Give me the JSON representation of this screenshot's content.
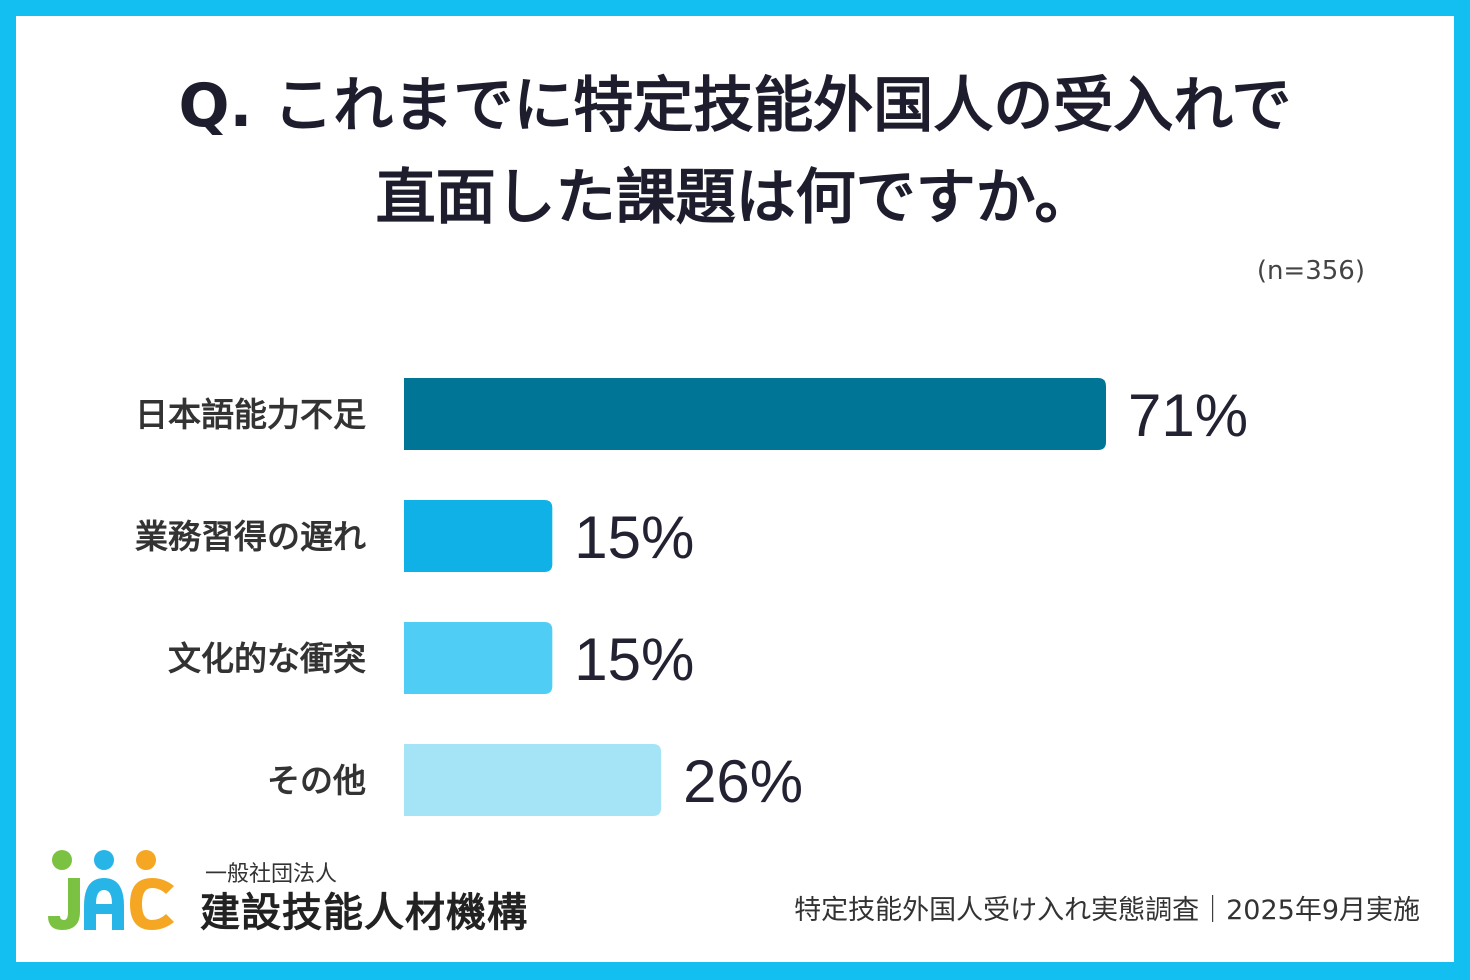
{
  "title_lines": [
    "Q. これまでに特定技能外国人の受入れで",
    "直面した課題は何ですか。"
  ],
  "sample_size": "(n=356)",
  "chart_data": {
    "type": "bar",
    "orientation": "horizontal",
    "categories": [
      "日本語能力不足",
      "業務習得の遅れ",
      "文化的な衝突",
      "その他"
    ],
    "values": [
      71,
      15,
      15,
      26
    ],
    "value_labels": [
      "71%",
      "15%",
      "15%",
      "26%"
    ],
    "bar_colors": [
      "#007596",
      "#0fb1e6",
      "#4fcdf5",
      "#a5e3f6"
    ],
    "xlim": [
      0,
      100
    ],
    "grid": false
  },
  "logo": {
    "sub": "一般社団法人",
    "main": "建設技能人材機構",
    "mark": "JAC",
    "dot_colors": [
      "#7cc242",
      "#27b5e8",
      "#f5a623"
    ]
  },
  "source": "特定技能外国人受け入れ実態調査｜2025年9月実施",
  "colors": {
    "frame": "#12bff0",
    "title": "#1d1d2e"
  }
}
